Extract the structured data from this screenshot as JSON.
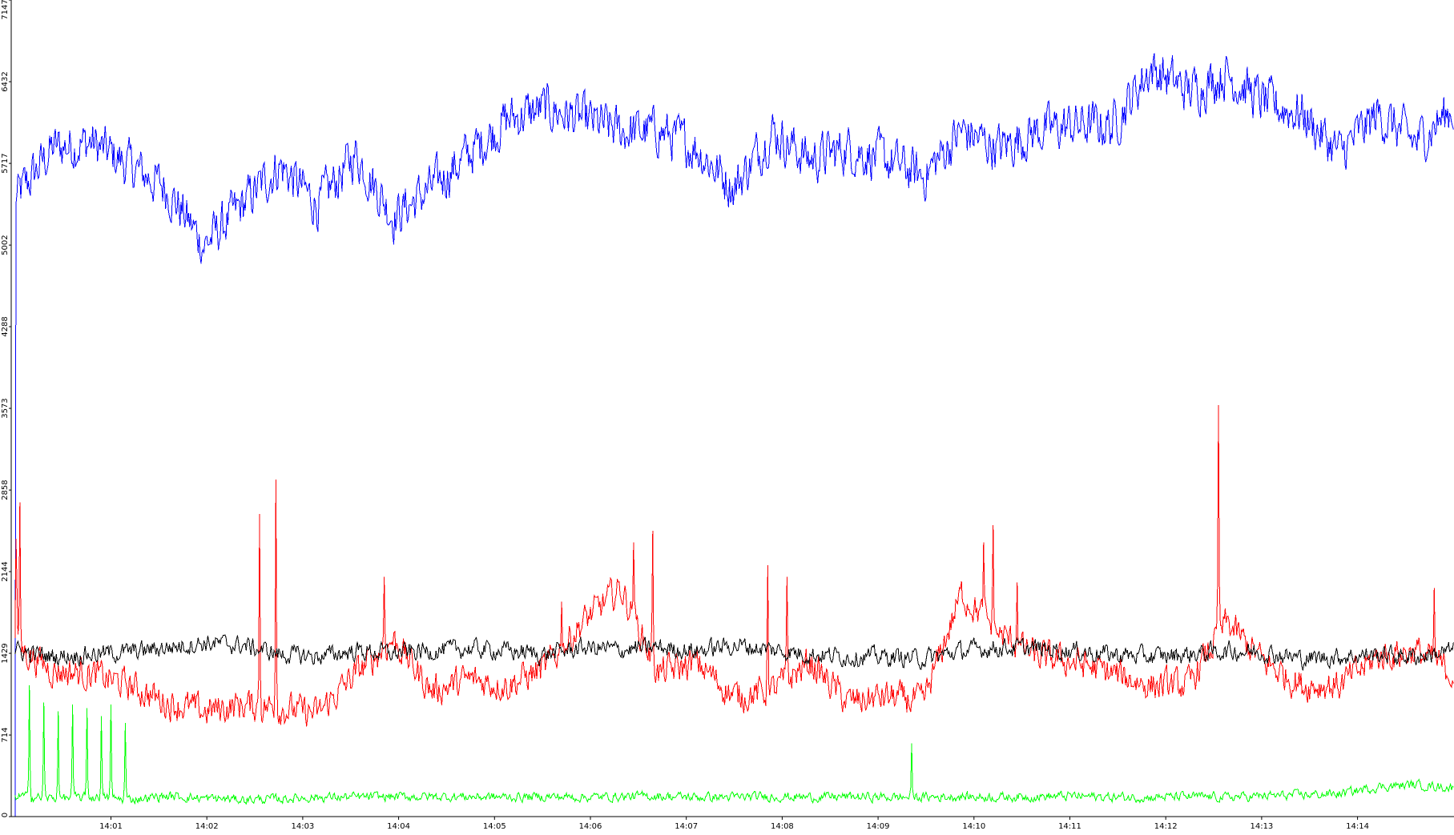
{
  "chart_data": {
    "type": "line",
    "title": "",
    "xlabel": "",
    "ylabel": "",
    "ylim": [
      0,
      7147
    ],
    "y_ticks": [
      0,
      714,
      1429,
      2144,
      2858,
      3573,
      4288,
      5002,
      5717,
      6432,
      7147
    ],
    "x_ticks": [
      "14:01",
      "14:02",
      "14:03",
      "14:04",
      "14:05",
      "14:06",
      "14:07",
      "14:08",
      "14:09",
      "14:10",
      "14:11",
      "14:12",
      "14:13",
      "14:14"
    ],
    "x_range_minutes": [
      0,
      15
    ],
    "grid": false,
    "legend": "none",
    "series": [
      {
        "color": "#0000ff",
        "baseline": [
          5400,
          5850,
          5900,
          5700,
          5500,
          5000,
          5350,
          5700,
          5350,
          5800,
          5250,
          5500,
          5800,
          6100,
          6200,
          6100,
          6000,
          6000,
          5850,
          5500,
          6000,
          5750,
          5850,
          5750,
          5600,
          6000,
          5850,
          6000,
          6050,
          6050,
          6550,
          6350,
          6500,
          6250,
          6150,
          5800,
          6150,
          5900,
          6200
        ],
        "noise": 180
      },
      {
        "color": "#ff0000",
        "baseline": [
          1500,
          1280,
          1250,
          1150,
          1000,
          920,
          980,
          950,
          900,
          1250,
          1550,
          1100,
          1200,
          1150,
          1300,
          1700,
          2000,
          1250,
          1350,
          1050,
          1100,
          1350,
          1000,
          1050,
          1000,
          1950,
          1600,
          1400,
          1350,
          1250,
          1150,
          1150,
          1700,
          1350,
          1150,
          1150,
          1400,
          1450,
          1250
        ],
        "noise": 120,
        "spikes": [
          [
            0.05,
            2750
          ],
          [
            0.013,
            2750
          ],
          [
            2.55,
            2650
          ],
          [
            2.72,
            2950
          ],
          [
            3.85,
            2100
          ],
          [
            5.7,
            1880
          ],
          [
            6.45,
            2400
          ],
          [
            6.65,
            2500
          ],
          [
            7.85,
            2200
          ],
          [
            8.05,
            2100
          ],
          [
            10.1,
            2400
          ],
          [
            10.2,
            2550
          ],
          [
            10.45,
            2050
          ],
          [
            12.55,
            3600
          ],
          [
            14.8,
            2000
          ]
        ]
      },
      {
        "color": "#000000",
        "baseline": [
          1450,
          1400,
          1420,
          1440,
          1480,
          1520,
          1500,
          1420,
          1400,
          1450,
          1430,
          1450,
          1470,
          1450,
          1420,
          1480,
          1460,
          1480,
          1450,
          1500,
          1460,
          1420,
          1400,
          1400,
          1380,
          1450,
          1480,
          1470,
          1450,
          1420,
          1400,
          1420,
          1450,
          1440,
          1380,
          1400,
          1420,
          1400,
          1450
        ],
        "noise": 70
      },
      {
        "color": "#00ff00",
        "baseline": [
          180,
          160,
          170,
          150,
          180,
          160,
          150,
          155,
          170,
          170,
          175,
          175,
          175,
          170,
          175,
          170,
          175,
          180,
          170,
          170,
          175,
          170,
          175,
          170,
          170,
          175,
          170,
          175,
          180,
          170,
          170,
          175,
          170,
          180,
          190,
          200,
          260,
          280,
          250
        ],
        "noise": 35,
        "spikes": [
          [
            0.15,
            1150
          ],
          [
            0.3,
            1000
          ],
          [
            0.45,
            920
          ],
          [
            0.6,
            980
          ],
          [
            0.75,
            950
          ],
          [
            0.9,
            880
          ],
          [
            1.0,
            980
          ],
          [
            1.15,
            820
          ],
          [
            9.35,
            640
          ]
        ]
      }
    ]
  }
}
